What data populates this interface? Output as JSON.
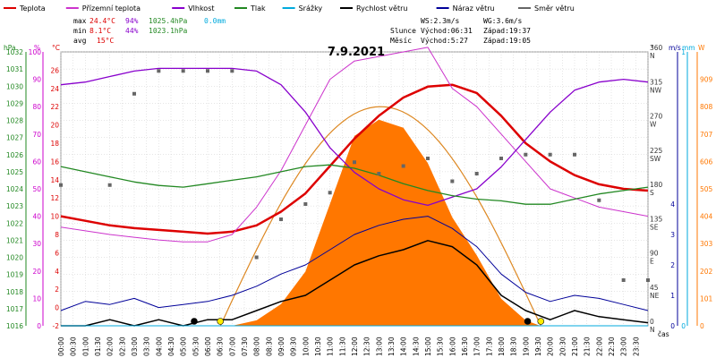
{
  "title": "7.9.2021",
  "legend": [
    {
      "label": "Teplota",
      "color": "#dd0000"
    },
    {
      "label": "Přízemní teplota",
      "color": "#cc33cc"
    },
    {
      "label": "Vlhkost",
      "color": "#8800cc"
    },
    {
      "label": "Tlak",
      "color": "#228822"
    },
    {
      "label": "Srážky",
      "color": "#00aadd"
    },
    {
      "label": "Rychlost větru",
      "color": "#000000"
    },
    {
      "label": "Náraz větru",
      "color": "#000099"
    },
    {
      "label": "Směr větru",
      "color": "#666666"
    }
  ],
  "stats": {
    "max": {
      "label": "max",
      "temp": "24.4°C",
      "hum": "94%",
      "press": "1025.4hPa",
      "rain": "0.0mm"
    },
    "min": {
      "label": "min",
      "temp": "8.1°C",
      "hum": "44%",
      "press": "1023.1hPa"
    },
    "avg": {
      "label": "avg",
      "temp": "15°C"
    }
  },
  "wind_info": {
    "ws": "WS:2.3m/s",
    "wg": "WG:3.6m/s"
  },
  "sun_info": {
    "label": "Slunce",
    "rise": "Východ:06:31",
    "set": "Západ:19:37"
  },
  "moon_info": {
    "label": "Měsíc",
    "rise": "Východ:5:27",
    "set": "Západ:19:05"
  },
  "colors": {
    "temp": "#dd0000",
    "ground_temp": "#cc33cc",
    "humidity": "#8800cc",
    "pressure": "#228822",
    "rain": "#00aadd",
    "wind": "#000000",
    "gust": "#000099",
    "direction": "#666666",
    "solar": "#ff7700",
    "solar_theory": "#dd8822",
    "grid": "#cccccc",
    "sun_marker": "#ffee00"
  },
  "chart_data": {
    "type": "line",
    "title": "7.9.2021",
    "x_label": "čas",
    "x_ticks": [
      "00:00",
      "00:30",
      "01:00",
      "01:30",
      "02:00",
      "02:30",
      "03:00",
      "03:30",
      "04:00",
      "04:30",
      "05:00",
      "05:30",
      "06:00",
      "06:30",
      "07:00",
      "07:30",
      "08:00",
      "08:30",
      "09:00",
      "09:30",
      "10:00",
      "10:30",
      "11:00",
      "11:30",
      "12:00",
      "12:30",
      "13:00",
      "13:30",
      "14:00",
      "14:30",
      "15:00",
      "15:30",
      "16:00",
      "16:30",
      "17:00",
      "17:30",
      "18:00",
      "18:30",
      "19:00",
      "19:30",
      "20:00",
      "20:30",
      "21:00",
      "21:30",
      "22:00",
      "22:30",
      "23:00",
      "23:30"
    ],
    "grid": true,
    "axes": {
      "pressure": {
        "label": "hPa",
        "min": 1016,
        "max": 1032,
        "ticks": [
          1016,
          1017,
          1018,
          1019,
          1020,
          1021,
          1022,
          1023,
          1024,
          1025,
          1026,
          1027,
          1028,
          1029,
          1030,
          1031,
          1032
        ]
      },
      "humidity": {
        "label": "%",
        "min": 0,
        "max": 100,
        "ticks": [
          0,
          10,
          20,
          30,
          40,
          50,
          60,
          70,
          80,
          90,
          100
        ]
      },
      "temperature": {
        "label": "°C",
        "min": -2,
        "max": 28,
        "ticks": [
          -2,
          0,
          2,
          4,
          6,
          8,
          10,
          12,
          14,
          16,
          18,
          20,
          22,
          24,
          26
        ]
      },
      "direction": {
        "label": "°",
        "min": 0,
        "max": 360,
        "ticks": [
          {
            "v": 0,
            "l": "0",
            "d": "N"
          },
          {
            "v": 45,
            "l": "45",
            "d": "NE"
          },
          {
            "v": 90,
            "l": "90",
            "d": "E"
          },
          {
            "v": 135,
            "l": "135",
            "d": "SE"
          },
          {
            "v": 180,
            "l": "180",
            "d": "S"
          },
          {
            "v": 225,
            "l": "225",
            "d": "SW"
          },
          {
            "v": 270,
            "l": "270",
            "d": "W"
          },
          {
            "v": 315,
            "l": "315",
            "d": "NW"
          },
          {
            "v": 360,
            "l": "360",
            "d": "N"
          }
        ]
      },
      "wind_speed": {
        "label": "m/s",
        "min": 0,
        "max": 9,
        "ticks": [
          0,
          1,
          2,
          3,
          4
        ]
      },
      "rain": {
        "label": "mm",
        "min": 0,
        "max": 1,
        "ticks": [
          0,
          1
        ]
      },
      "solar": {
        "label": "W",
        "min": 0,
        "max": 1010,
        "ticks": [
          0,
          101,
          202,
          303,
          404,
          505,
          606,
          707,
          808,
          909
        ]
      }
    },
    "series": [
      {
        "name": "Teplota",
        "axis": "temperature",
        "points": [
          [
            0,
            10
          ],
          [
            1,
            9.5
          ],
          [
            2,
            9
          ],
          [
            3,
            8.7
          ],
          [
            4,
            8.5
          ],
          [
            5,
            8.3
          ],
          [
            6,
            8.1
          ],
          [
            7,
            8.3
          ],
          [
            8,
            9
          ],
          [
            9,
            10.5
          ],
          [
            10,
            12.5
          ],
          [
            11,
            15.5
          ],
          [
            12,
            18.5
          ],
          [
            13,
            21
          ],
          [
            14,
            23
          ],
          [
            15,
            24.2
          ],
          [
            16,
            24.4
          ],
          [
            17,
            23.5
          ],
          [
            18,
            21
          ],
          [
            19,
            18
          ],
          [
            20,
            16
          ],
          [
            21,
            14.5
          ],
          [
            22,
            13.5
          ],
          [
            23,
            13
          ],
          [
            24,
            12.8
          ]
        ]
      },
      {
        "name": "Přízemní teplota",
        "axis": "temperature",
        "points": [
          [
            0,
            8.8
          ],
          [
            1,
            8.4
          ],
          [
            2,
            8
          ],
          [
            3,
            7.7
          ],
          [
            4,
            7.4
          ],
          [
            5,
            7.2
          ],
          [
            6,
            7.2
          ],
          [
            7,
            8
          ],
          [
            8,
            11
          ],
          [
            9,
            15
          ],
          [
            10,
            20
          ],
          [
            11,
            25
          ],
          [
            12,
            27
          ],
          [
            13,
            27.5
          ],
          [
            14,
            28
          ],
          [
            15,
            28.5
          ],
          [
            16,
            24
          ],
          [
            17,
            22
          ],
          [
            18,
            19
          ],
          [
            19,
            16
          ],
          [
            20,
            13
          ],
          [
            21,
            12
          ],
          [
            22,
            11
          ],
          [
            23,
            10.5
          ],
          [
            24,
            10
          ]
        ]
      },
      {
        "name": "Vlhkost",
        "axis": "humidity",
        "points": [
          [
            0,
            88
          ],
          [
            1,
            89
          ],
          [
            2,
            91
          ],
          [
            3,
            93
          ],
          [
            4,
            94
          ],
          [
            5,
            94
          ],
          [
            6,
            94
          ],
          [
            7,
            94
          ],
          [
            8,
            93
          ],
          [
            9,
            88
          ],
          [
            10,
            78
          ],
          [
            11,
            65
          ],
          [
            12,
            56
          ],
          [
            13,
            50
          ],
          [
            14,
            46
          ],
          [
            15,
            44
          ],
          [
            16,
            47
          ],
          [
            17,
            50
          ],
          [
            18,
            58
          ],
          [
            19,
            68
          ],
          [
            20,
            78
          ],
          [
            21,
            86
          ],
          [
            22,
            89
          ],
          [
            23,
            90
          ],
          [
            24,
            89
          ]
        ]
      },
      {
        "name": "Tlak",
        "axis": "pressure",
        "points": [
          [
            0,
            1025.3
          ],
          [
            1,
            1025
          ],
          [
            2,
            1024.7
          ],
          [
            3,
            1024.4
          ],
          [
            4,
            1024.2
          ],
          [
            5,
            1024.1
          ],
          [
            6,
            1024.3
          ],
          [
            7,
            1024.5
          ],
          [
            8,
            1024.7
          ],
          [
            9,
            1025
          ],
          [
            10,
            1025.3
          ],
          [
            11,
            1025.4
          ],
          [
            12,
            1025.2
          ],
          [
            13,
            1024.8
          ],
          [
            14,
            1024.3
          ],
          [
            15,
            1023.9
          ],
          [
            16,
            1023.6
          ],
          [
            17,
            1023.4
          ],
          [
            18,
            1023.3
          ],
          [
            19,
            1023.1
          ],
          [
            20,
            1023.1
          ],
          [
            21,
            1023.4
          ],
          [
            22,
            1023.7
          ],
          [
            23,
            1023.9
          ],
          [
            24,
            1024.1
          ]
        ]
      },
      {
        "name": "Rychlost větru",
        "axis": "wind_speed",
        "points": [
          [
            0,
            0
          ],
          [
            1,
            0
          ],
          [
            2,
            0.2
          ],
          [
            3,
            0
          ],
          [
            4,
            0.2
          ],
          [
            5,
            0
          ],
          [
            6,
            0.2
          ],
          [
            7,
            0.2
          ],
          [
            8,
            0.5
          ],
          [
            9,
            0.8
          ],
          [
            10,
            1
          ],
          [
            11,
            1.5
          ],
          [
            12,
            2
          ],
          [
            13,
            2.3
          ],
          [
            14,
            2.5
          ],
          [
            15,
            2.8
          ],
          [
            16,
            2.6
          ],
          [
            17,
            2
          ],
          [
            18,
            1
          ],
          [
            19,
            0.5
          ],
          [
            20,
            0.2
          ],
          [
            21,
            0.5
          ],
          [
            22,
            0.3
          ],
          [
            23,
            0.2
          ],
          [
            24,
            0.1
          ]
        ]
      },
      {
        "name": "Náraz větru",
        "axis": "wind_speed",
        "points": [
          [
            0,
            0.5
          ],
          [
            1,
            0.8
          ],
          [
            2,
            0.7
          ],
          [
            3,
            0.9
          ],
          [
            4,
            0.6
          ],
          [
            5,
            0.7
          ],
          [
            6,
            0.8
          ],
          [
            7,
            1
          ],
          [
            8,
            1.3
          ],
          [
            9,
            1.7
          ],
          [
            10,
            2
          ],
          [
            11,
            2.5
          ],
          [
            12,
            3
          ],
          [
            13,
            3.3
          ],
          [
            14,
            3.5
          ],
          [
            15,
            3.6
          ],
          [
            16,
            3.2
          ],
          [
            17,
            2.6
          ],
          [
            18,
            1.7
          ],
          [
            19,
            1.1
          ],
          [
            20,
            0.8
          ],
          [
            21,
            1
          ],
          [
            22,
            0.9
          ],
          [
            23,
            0.7
          ],
          [
            24,
            0.5
          ]
        ]
      },
      {
        "name": "Směr větru",
        "axis": "direction",
        "points": [
          [
            0,
            185
          ],
          [
            2,
            185
          ],
          [
            3,
            305
          ],
          [
            4,
            335
          ],
          [
            5,
            335
          ],
          [
            6,
            335
          ],
          [
            7,
            335
          ],
          [
            8,
            90
          ],
          [
            9,
            140
          ],
          [
            10,
            160
          ],
          [
            11,
            175
          ],
          [
            12,
            215
          ],
          [
            13,
            200
          ],
          [
            14,
            210
          ],
          [
            15,
            220
          ],
          [
            16,
            190
          ],
          [
            17,
            200
          ],
          [
            18,
            220
          ],
          [
            19,
            225
          ],
          [
            20,
            225
          ],
          [
            21,
            225
          ],
          [
            22,
            165
          ],
          [
            23,
            60
          ],
          [
            24,
            60
          ]
        ]
      },
      {
        "name": "Srážky",
        "axis": "rain",
        "points": [
          [
            0,
            0
          ],
          [
            24,
            0
          ]
        ]
      },
      {
        "name": "Sluneční záření",
        "axis": "solar",
        "points": [
          [
            7,
            0
          ],
          [
            8,
            20
          ],
          [
            9,
            80
          ],
          [
            10,
            200
          ],
          [
            11,
            450
          ],
          [
            12,
            700
          ],
          [
            13,
            760
          ],
          [
            14,
            730
          ],
          [
            15,
            600
          ],
          [
            16,
            400
          ],
          [
            17,
            260
          ],
          [
            18,
            100
          ],
          [
            19,
            20
          ],
          [
            19.6,
            0
          ]
        ]
      }
    ],
    "solar_theoretical": {
      "axis": "solar",
      "peak": 808,
      "rise": 6.52,
      "set": 19.62
    }
  }
}
